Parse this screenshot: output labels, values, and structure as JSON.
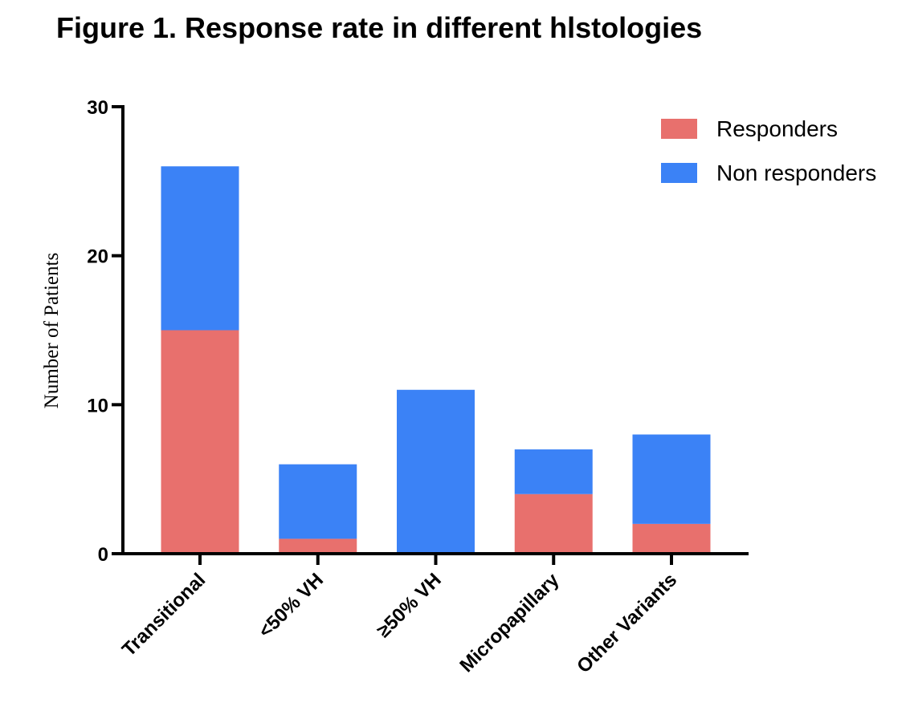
{
  "chart_data": {
    "type": "bar",
    "stacked": true,
    "title": "Figure 1. Response rate in different hlstologies",
    "xlabel": "",
    "ylabel": "Number of Patients",
    "categories": [
      "Transitional",
      "<50% VH",
      "≥50% VH",
      "Micropapillary",
      "Other Variants"
    ],
    "series": [
      {
        "name": "Responders",
        "values": [
          15,
          1,
          0,
          4,
          2
        ],
        "color": "#e8706d"
      },
      {
        "name": "Non responders",
        "values": [
          11,
          5,
          11,
          3,
          6
        ],
        "color": "#3b82f6"
      }
    ],
    "ylim": [
      0,
      30
    ],
    "yticks": [
      0,
      10,
      20,
      30
    ],
    "grid": false,
    "legend": "top-right"
  }
}
